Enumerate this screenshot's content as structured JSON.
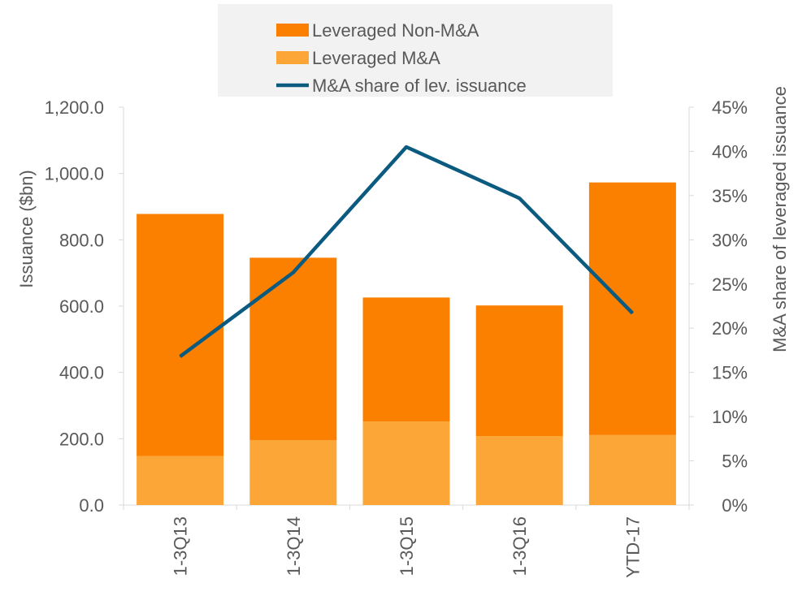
{
  "chart_data": {
    "type": "bar",
    "stacked": true,
    "secondary_axis": true,
    "categories": [
      "1-3Q13",
      "1-3Q14",
      "1-3Q15",
      "1-3Q16",
      "YTD-17"
    ],
    "series": [
      {
        "name": "Leveraged M&A",
        "type": "bar",
        "color": "#fba636",
        "values": [
          148,
          196,
          252,
          208,
          211
        ]
      },
      {
        "name": "Leveraged Non-M&A",
        "type": "bar",
        "color": "#fb8000",
        "values": [
          730,
          550,
          374,
          394,
          762
        ]
      },
      {
        "name": "M&A share of lev. issuance",
        "type": "line",
        "axis": "right",
        "color": "#0b5a80",
        "values": [
          0.168,
          0.263,
          0.405,
          0.347,
          0.217
        ]
      }
    ],
    "legend_order": [
      "Leveraged Non-M&A",
      "Leveraged M&A",
      "M&A share of lev. issuance"
    ],
    "legend_position": "top",
    "ylabel": "Issuance ($bn)",
    "y2label": "M&A share of leveraged issuance",
    "ylim": [
      0,
      1200
    ],
    "y2lim": [
      0,
      0.45
    ],
    "yticks": [
      "0.0",
      "200.0",
      "400.0",
      "600.0",
      "800.0",
      "1,000.0",
      "1,200.0"
    ],
    "y2ticks": [
      "0%",
      "5%",
      "10%",
      "15%",
      "20%",
      "25%",
      "30%",
      "35%",
      "40%",
      "45%"
    ],
    "grid": false
  }
}
